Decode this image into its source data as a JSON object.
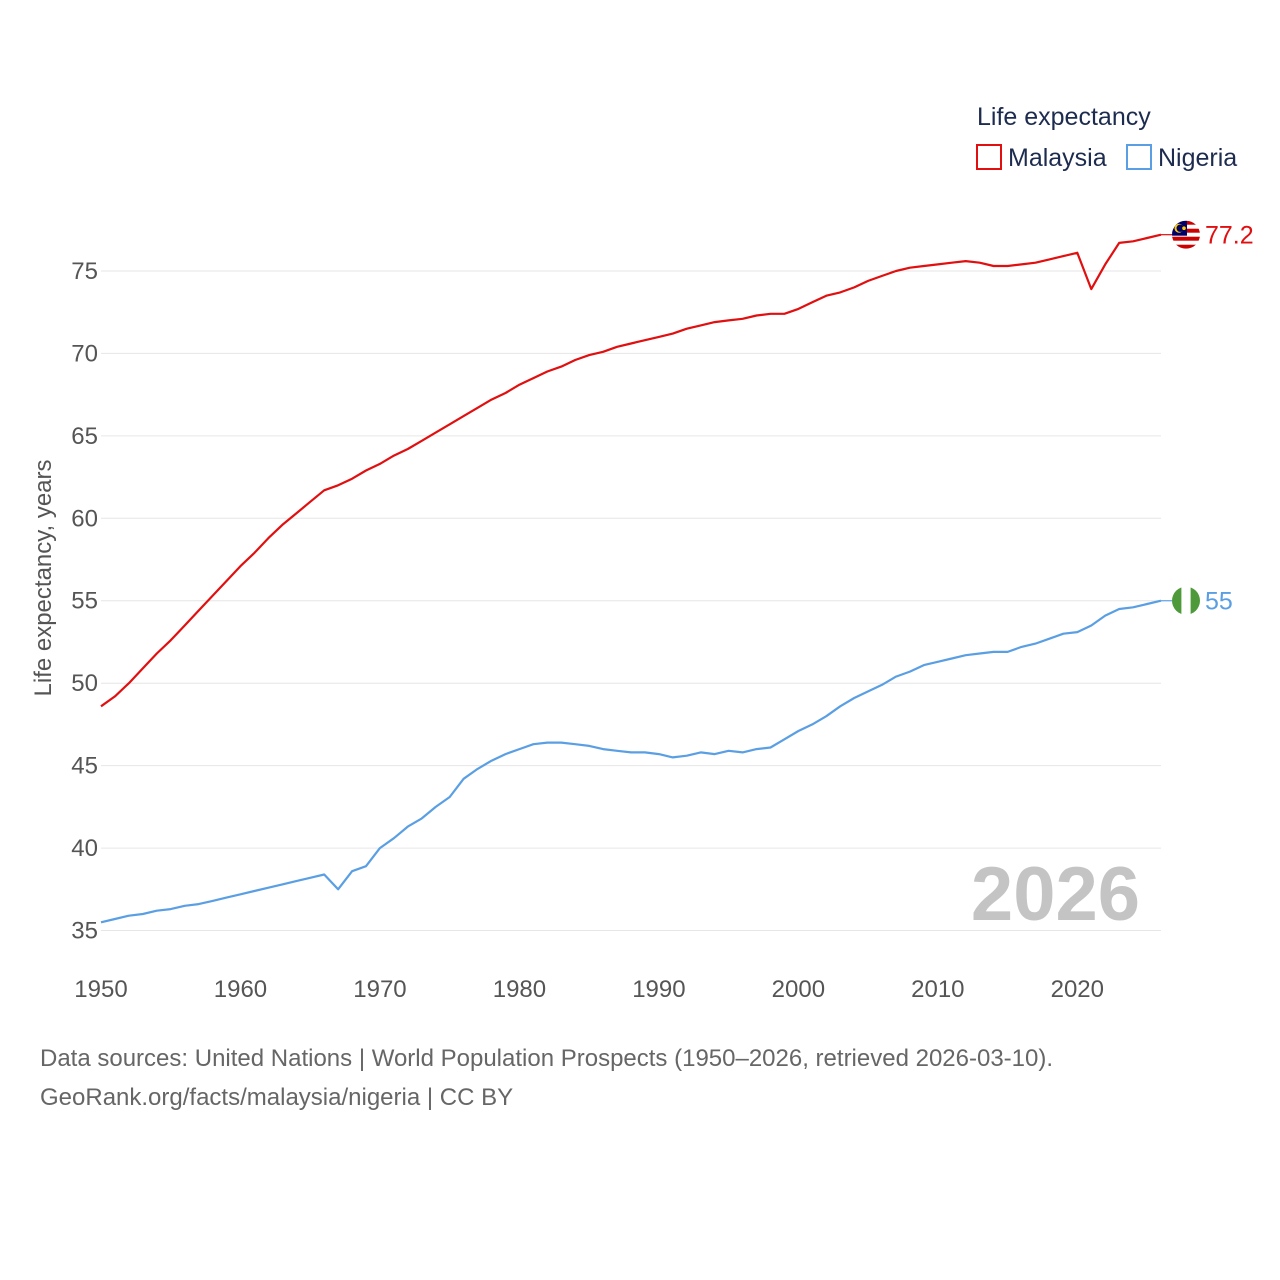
{
  "chart_data": {
    "type": "line",
    "legend_title": "Life expectancy",
    "ylabel": "Life expectancy, years",
    "xlabel": "",
    "xlim": [
      1950,
      2026
    ],
    "ylim": [
      32,
      79
    ],
    "yticks": [
      35,
      40,
      45,
      50,
      55,
      60,
      65,
      70,
      75
    ],
    "xticks": [
      1950,
      1960,
      1970,
      1980,
      1990,
      2000,
      2010,
      2020
    ],
    "grid": true,
    "legend_position": "top-right",
    "year_watermark": "2026",
    "x": [
      1950,
      1951,
      1952,
      1953,
      1954,
      1955,
      1956,
      1957,
      1958,
      1959,
      1960,
      1961,
      1962,
      1963,
      1964,
      1965,
      1966,
      1967,
      1968,
      1969,
      1970,
      1971,
      1972,
      1973,
      1974,
      1975,
      1976,
      1977,
      1978,
      1979,
      1980,
      1981,
      1982,
      1983,
      1984,
      1985,
      1986,
      1987,
      1988,
      1989,
      1990,
      1991,
      1992,
      1993,
      1994,
      1995,
      1996,
      1997,
      1998,
      1999,
      2000,
      2001,
      2002,
      2003,
      2004,
      2005,
      2006,
      2007,
      2008,
      2009,
      2010,
      2011,
      2012,
      2013,
      2014,
      2015,
      2016,
      2017,
      2018,
      2019,
      2020,
      2021,
      2022,
      2023,
      2024,
      2025,
      2026
    ],
    "series": [
      {
        "name": "Malaysia",
        "color": "#e10f0f",
        "end_label": "77.2",
        "flag": "malaysia-flag-icon",
        "values": [
          48.6,
          49.2,
          50.0,
          50.9,
          51.8,
          52.6,
          53.5,
          54.4,
          55.3,
          56.2,
          57.1,
          57.9,
          58.8,
          59.6,
          60.3,
          61.0,
          61.7,
          62.0,
          62.4,
          62.9,
          63.3,
          63.8,
          64.2,
          64.7,
          65.2,
          65.7,
          66.2,
          66.7,
          67.2,
          67.6,
          68.1,
          68.5,
          68.9,
          69.2,
          69.6,
          69.9,
          70.1,
          70.4,
          70.6,
          70.8,
          71.0,
          71.2,
          71.5,
          71.7,
          71.9,
          72.0,
          72.1,
          72.3,
          72.4,
          72.4,
          72.7,
          73.1,
          73.5,
          73.7,
          74.0,
          74.4,
          74.7,
          75.0,
          75.2,
          75.3,
          75.4,
          75.5,
          75.6,
          75.5,
          75.3,
          75.3,
          75.4,
          75.5,
          75.7,
          75.9,
          76.1,
          73.9,
          75.4,
          76.7,
          76.8,
          77.0,
          77.2
        ]
      },
      {
        "name": "Nigeria",
        "color": "#5a9fe3",
        "end_label": "55",
        "flag": "nigeria-flag-icon",
        "values": [
          35.5,
          35.7,
          35.9,
          36.0,
          36.2,
          36.3,
          36.5,
          36.6,
          36.8,
          37.0,
          37.2,
          37.4,
          37.6,
          37.8,
          38.0,
          38.2,
          38.4,
          37.5,
          38.6,
          38.9,
          40.0,
          40.6,
          41.3,
          41.8,
          42.5,
          43.1,
          44.2,
          44.8,
          45.3,
          45.7,
          46.0,
          46.3,
          46.4,
          46.4,
          46.3,
          46.2,
          46.0,
          45.9,
          45.8,
          45.8,
          45.7,
          45.5,
          45.6,
          45.8,
          45.7,
          45.9,
          45.8,
          46.0,
          46.1,
          46.6,
          47.1,
          47.5,
          48.0,
          48.6,
          49.1,
          49.5,
          49.9,
          50.4,
          50.7,
          51.1,
          51.3,
          51.5,
          51.7,
          51.8,
          51.9,
          51.9,
          52.2,
          52.4,
          52.7,
          53.0,
          53.1,
          53.5,
          54.1,
          54.5,
          54.6,
          54.8,
          55.0
        ]
      }
    ]
  },
  "source_line_1": "Data sources: United Nations | World Population Prospects (1950–2026, retrieved 2026-03-10).",
  "source_line_2": "GeoRank.org/facts/malaysia/nigeria | CC BY"
}
